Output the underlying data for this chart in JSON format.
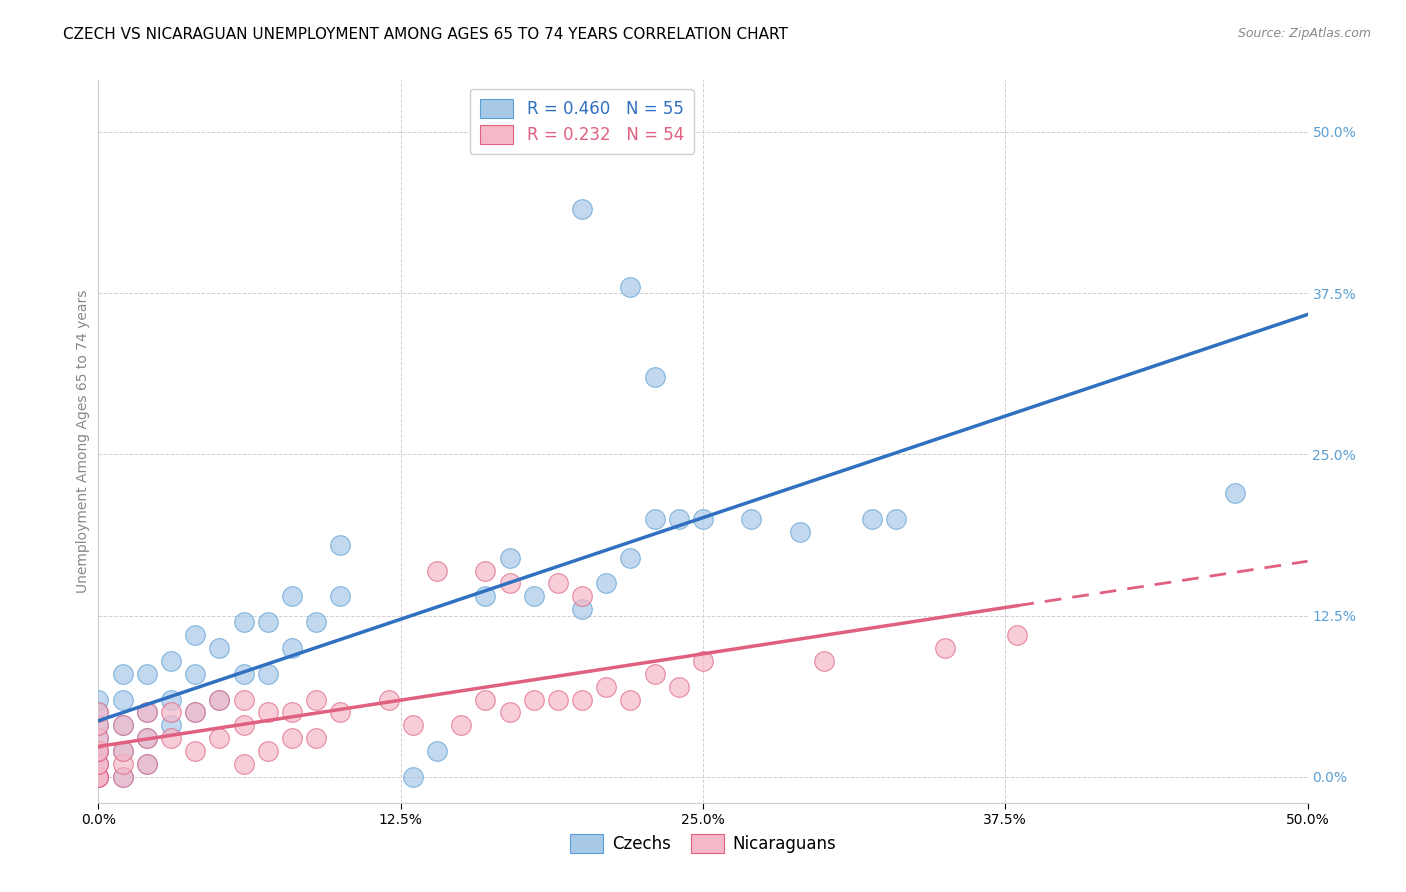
{
  "title": "CZECH VS NICARAGUAN UNEMPLOYMENT AMONG AGES 65 TO 74 YEARS CORRELATION CHART",
  "source": "Source: ZipAtlas.com",
  "ylabel": "Unemployment Among Ages 65 to 74 years",
  "xlim": [
    0.0,
    0.5
  ],
  "ylim": [
    -0.02,
    0.54
  ],
  "xticks": [
    0.0,
    0.125,
    0.25,
    0.375,
    0.5
  ],
  "xtick_labels": [
    "0.0%",
    "12.5%",
    "25.0%",
    "37.5%",
    "50.0%"
  ],
  "yticks_right": [
    0.0,
    0.125,
    0.25,
    0.375,
    0.5
  ],
  "ytick_labels_right": [
    "0.0%",
    "12.5%",
    "25.0%",
    "37.5%",
    "50.0%"
  ],
  "czech_color": "#a8c8e8",
  "czech_edge": "#5a9fd4",
  "nicaraguan_color": "#f4b8c8",
  "nicaraguan_edge": "#e06080",
  "czech_line_color": "#3070c0",
  "nicaraguan_line_color": "#e06080",
  "czech_R": 0.46,
  "czech_N": 55,
  "nicaraguan_R": 0.232,
  "nicaraguan_N": 54,
  "czech_x": [
    0.0,
    0.0,
    0.0,
    0.0,
    0.0,
    0.0,
    0.0,
    0.0,
    0.0,
    0.0,
    0.01,
    0.01,
    0.01,
    0.01,
    0.01,
    0.02,
    0.02,
    0.02,
    0.02,
    0.03,
    0.03,
    0.03,
    0.04,
    0.04,
    0.04,
    0.05,
    0.05,
    0.06,
    0.06,
    0.07,
    0.07,
    0.08,
    0.08,
    0.09,
    0.1,
    0.1,
    0.13,
    0.14,
    0.16,
    0.17,
    0.18,
    0.2,
    0.21,
    0.22,
    0.23,
    0.24,
    0.25,
    0.27,
    0.29,
    0.32,
    0.33,
    0.47,
    0.2,
    0.22,
    0.23
  ],
  "czech_y": [
    0.0,
    0.0,
    0.0,
    0.01,
    0.02,
    0.02,
    0.03,
    0.04,
    0.05,
    0.06,
    0.0,
    0.02,
    0.04,
    0.06,
    0.08,
    0.01,
    0.03,
    0.05,
    0.08,
    0.04,
    0.06,
    0.09,
    0.05,
    0.08,
    0.11,
    0.06,
    0.1,
    0.08,
    0.12,
    0.08,
    0.12,
    0.1,
    0.14,
    0.12,
    0.14,
    0.18,
    0.0,
    0.02,
    0.14,
    0.17,
    0.14,
    0.13,
    0.15,
    0.17,
    0.2,
    0.2,
    0.2,
    0.2,
    0.19,
    0.2,
    0.2,
    0.22,
    0.44,
    0.38,
    0.31
  ],
  "nic_x": [
    0.0,
    0.0,
    0.0,
    0.0,
    0.0,
    0.0,
    0.0,
    0.0,
    0.0,
    0.0,
    0.01,
    0.01,
    0.01,
    0.01,
    0.02,
    0.02,
    0.02,
    0.03,
    0.03,
    0.04,
    0.04,
    0.05,
    0.05,
    0.06,
    0.06,
    0.06,
    0.07,
    0.07,
    0.08,
    0.08,
    0.09,
    0.09,
    0.1,
    0.12,
    0.13,
    0.15,
    0.16,
    0.17,
    0.18,
    0.19,
    0.2,
    0.21,
    0.22,
    0.23,
    0.24,
    0.25,
    0.3,
    0.35,
    0.38,
    0.14,
    0.16,
    0.17,
    0.19,
    0.2
  ],
  "nic_y": [
    0.0,
    0.0,
    0.0,
    0.01,
    0.01,
    0.02,
    0.02,
    0.03,
    0.04,
    0.05,
    0.0,
    0.01,
    0.02,
    0.04,
    0.01,
    0.03,
    0.05,
    0.03,
    0.05,
    0.02,
    0.05,
    0.03,
    0.06,
    0.01,
    0.04,
    0.06,
    0.02,
    0.05,
    0.03,
    0.05,
    0.03,
    0.06,
    0.05,
    0.06,
    0.04,
    0.04,
    0.06,
    0.05,
    0.06,
    0.06,
    0.06,
    0.07,
    0.06,
    0.08,
    0.07,
    0.09,
    0.09,
    0.1,
    0.11,
    0.16,
    0.16,
    0.15,
    0.15,
    0.14
  ],
  "background_color": "#ffffff",
  "grid_color": "#d0d0d0",
  "title_fontsize": 11,
  "source_fontsize": 9,
  "tick_fontsize": 10,
  "ylabel_fontsize": 10,
  "legend_fontsize": 12
}
